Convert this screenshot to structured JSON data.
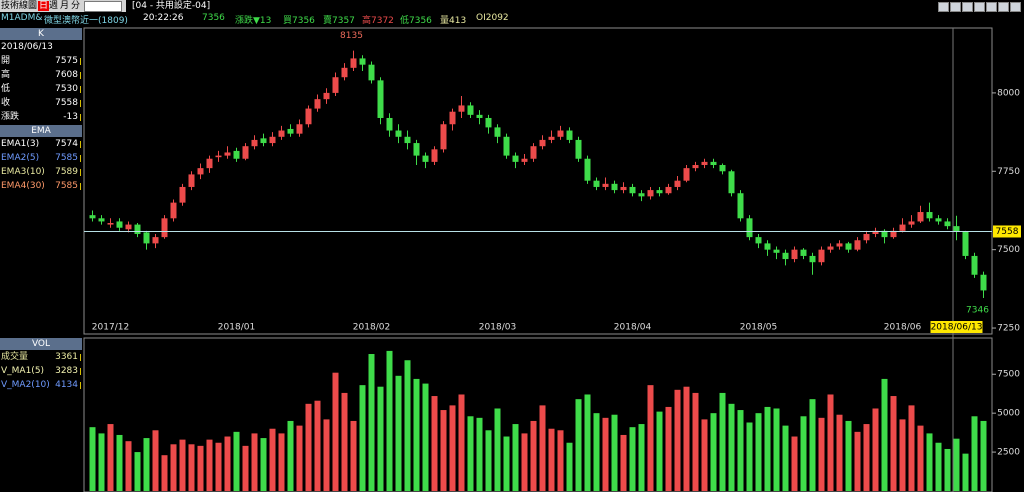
{
  "toolbar": {
    "title": "技術線圖",
    "tabs": [
      "日",
      "週",
      "月",
      "分"
    ],
    "setting": "[04 - 共用設定-04]"
  },
  "quote": {
    "symbol": "M1ADM&",
    "name": "微型澳幣近一(1809)",
    "time": "20:22:26",
    "last": 7356,
    "change": "漲跌▼13",
    "bid": "買7356",
    "ask": "賣7357",
    "high": "高7372",
    "low": "低7356",
    "volume": "量413",
    "oi": "OI2092"
  },
  "sidebar": {
    "k_header": "K",
    "k_rows": [
      {
        "label": "開"
      },
      {
        "label": "高"
      },
      {
        "label": "低"
      },
      {
        "label": "收"
      }
    ],
    "change": {
      "label": "漲跌",
      "value": -13
    },
    "ema_header": "EMA",
    "ema_rows": [
      {
        "label": "EMA1(3)",
        "value": 7574,
        "color": "#ffffff"
      },
      {
        "label": "EMA2(5)",
        "value": 7585,
        "color": "#6f9bff"
      },
      {
        "label": "EMA3(10)",
        "value": 7589,
        "color": "#e8e8a0"
      },
      {
        "label": "EMA4(30)",
        "value": 7585,
        "color": "#ff9a6a"
      }
    ],
    "vol_header": "VOL",
    "vol_label": "成交量",
    "vma_rows": [
      {
        "label": "V_MA1(5)",
        "value": 3283,
        "color": "#f2f2b0"
      },
      {
        "label": "V_MA2(10)",
        "value": 4134,
        "color": "#6f9bff"
      }
    ]
  },
  "chart_data": [
    {
      "type": "candlestick",
      "up_color": "#ec4b4b",
      "down_color": "#3fdc4a",
      "categories": [
        null,
        null,
        "2017/12",
        null,
        null,
        null,
        null,
        null,
        null,
        null,
        null,
        null,
        null,
        null,
        null,
        null,
        "2018/01",
        null,
        null,
        null,
        null,
        null,
        null,
        null,
        null,
        null,
        null,
        null,
        null,
        null,
        null,
        "2018/02",
        null,
        null,
        null,
        null,
        null,
        null,
        null,
        null,
        null,
        null,
        null,
        null,
        null,
        "2018/03",
        null,
        null,
        null,
        null,
        null,
        null,
        null,
        null,
        null,
        null,
        null,
        null,
        null,
        null,
        "2018/04",
        null,
        null,
        null,
        null,
        null,
        null,
        null,
        null,
        null,
        null,
        null,
        null,
        null,
        "2018/05",
        null,
        null,
        null,
        null,
        null,
        null,
        null,
        null,
        null,
        null,
        null,
        null,
        null,
        null,
        null,
        "2018/06",
        null,
        null,
        null,
        null,
        null,
        "2018/06/13",
        null,
        null,
        null
      ],
      "ohlc": [
        [
          7610,
          7625,
          7590,
          7600
        ],
        [
          7600,
          7610,
          7580,
          7590
        ],
        [
          7580,
          7600,
          7570,
          7585
        ],
        [
          7590,
          7600,
          7560,
          7570
        ],
        [
          7565,
          7590,
          7555,
          7580
        ],
        [
          7580,
          7585,
          7540,
          7550
        ],
        [
          7555,
          7560,
          7500,
          7520
        ],
        [
          7520,
          7550,
          7505,
          7540
        ],
        [
          7540,
          7610,
          7535,
          7600
        ],
        [
          7600,
          7660,
          7590,
          7650
        ],
        [
          7650,
          7710,
          7640,
          7700
        ],
        [
          7700,
          7750,
          7690,
          7740
        ],
        [
          7740,
          7775,
          7725,
          7760
        ],
        [
          7760,
          7800,
          7745,
          7790
        ],
        [
          7795,
          7815,
          7780,
          7800
        ],
        [
          7800,
          7830,
          7790,
          7810
        ],
        [
          7815,
          7825,
          7780,
          7790
        ],
        [
          7790,
          7840,
          7785,
          7830
        ],
        [
          7830,
          7865,
          7820,
          7850
        ],
        [
          7855,
          7870,
          7830,
          7840
        ],
        [
          7840,
          7875,
          7830,
          7860
        ],
        [
          7860,
          7895,
          7850,
          7880
        ],
        [
          7885,
          7900,
          7860,
          7870
        ],
        [
          7870,
          7915,
          7860,
          7900
        ],
        [
          7900,
          7960,
          7890,
          7950
        ],
        [
          7950,
          7995,
          7940,
          7980
        ],
        [
          7980,
          8015,
          7965,
          8000
        ],
        [
          8000,
          8065,
          7990,
          8050
        ],
        [
          8050,
          8095,
          8040,
          8080
        ],
        [
          8080,
          8135,
          8070,
          8110
        ],
        [
          8110,
          8120,
          8070,
          8090
        ],
        [
          8090,
          8100,
          8030,
          8040
        ],
        [
          8040,
          8050,
          7900,
          7920
        ],
        [
          7920,
          7935,
          7860,
          7880
        ],
        [
          7880,
          7900,
          7840,
          7860
        ],
        [
          7860,
          7880,
          7820,
          7840
        ],
        [
          7840,
          7850,
          7770,
          7800
        ],
        [
          7800,
          7810,
          7760,
          7780
        ],
        [
          7780,
          7830,
          7770,
          7820
        ],
        [
          7820,
          7910,
          7810,
          7900
        ],
        [
          7900,
          7950,
          7880,
          7940
        ],
        [
          7940,
          7990,
          7920,
          7960
        ],
        [
          7960,
          7970,
          7920,
          7930
        ],
        [
          7930,
          7945,
          7900,
          7920
        ],
        [
          7920,
          7930,
          7870,
          7890
        ],
        [
          7890,
          7900,
          7840,
          7860
        ],
        [
          7860,
          7870,
          7790,
          7800
        ],
        [
          7800,
          7810,
          7760,
          7780
        ],
        [
          7780,
          7805,
          7770,
          7790
        ],
        [
          7790,
          7840,
          7780,
          7830
        ],
        [
          7830,
          7865,
          7820,
          7850
        ],
        [
          7850,
          7880,
          7840,
          7860
        ],
        [
          7860,
          7895,
          7850,
          7880
        ],
        [
          7880,
          7890,
          7840,
          7850
        ],
        [
          7850,
          7860,
          7780,
          7790
        ],
        [
          7790,
          7800,
          7710,
          7720
        ],
        [
          7720,
          7730,
          7690,
          7700
        ],
        [
          7700,
          7730,
          7690,
          7710
        ],
        [
          7710,
          7720,
          7680,
          7690
        ],
        [
          7690,
          7715,
          7680,
          7700
        ],
        [
          7700,
          7710,
          7670,
          7680
        ],
        [
          7680,
          7690,
          7655,
          7670
        ],
        [
          7670,
          7700,
          7660,
          7690
        ],
        [
          7690,
          7700,
          7670,
          7680
        ],
        [
          7680,
          7710,
          7675,
          7700
        ],
        [
          7700,
          7735,
          7690,
          7720
        ],
        [
          7720,
          7770,
          7715,
          7760
        ],
        [
          7760,
          7780,
          7750,
          7770
        ],
        [
          7770,
          7790,
          7760,
          7780
        ],
        [
          7780,
          7790,
          7760,
          7770
        ],
        [
          7770,
          7775,
          7740,
          7750
        ],
        [
          7750,
          7755,
          7670,
          7680
        ],
        [
          7680,
          7690,
          7590,
          7600
        ],
        [
          7600,
          7610,
          7530,
          7540
        ],
        [
          7540,
          7550,
          7505,
          7520
        ],
        [
          7520,
          7530,
          7480,
          7500
        ],
        [
          7500,
          7510,
          7470,
          7490
        ],
        [
          7490,
          7500,
          7450,
          7470
        ],
        [
          7470,
          7510,
          7460,
          7500
        ],
        [
          7500,
          7505,
          7470,
          7480
        ],
        [
          7480,
          7490,
          7420,
          7460
        ],
        [
          7460,
          7510,
          7450,
          7500
        ],
        [
          7500,
          7520,
          7490,
          7510
        ],
        [
          7510,
          7530,
          7500,
          7520
        ],
        [
          7520,
          7525,
          7490,
          7500
        ],
        [
          7500,
          7540,
          7495,
          7530
        ],
        [
          7530,
          7560,
          7520,
          7550
        ],
        [
          7550,
          7570,
          7540,
          7560
        ],
        [
          7560,
          7565,
          7520,
          7540
        ],
        [
          7540,
          7570,
          7535,
          7560
        ],
        [
          7560,
          7600,
          7555,
          7580
        ],
        [
          7580,
          7610,
          7570,
          7590
        ],
        [
          7590,
          7640,
          7585,
          7620
        ],
        [
          7620,
          7650,
          7590,
          7600
        ],
        [
          7600,
          7610,
          7580,
          7590
        ],
        [
          7590,
          7600,
          7565,
          7575
        ],
        [
          7575,
          7608,
          7530,
          7558
        ],
        [
          7558,
          7560,
          7470,
          7480
        ],
        [
          7480,
          7490,
          7410,
          7420
        ],
        [
          7420,
          7430,
          7346,
          7370
        ]
      ],
      "ylim": [
        7231,
        8207
      ],
      "yticks": [
        7250,
        7500,
        7750,
        8000
      ]
    },
    {
      "type": "bar",
      "values": [
        4100,
        3700,
        4300,
        3600,
        3200,
        2500,
        3400,
        3900,
        2300,
        3000,
        3300,
        3000,
        2900,
        3300,
        3100,
        3500,
        3800,
        2900,
        3700,
        3400,
        4000,
        3700,
        4500,
        4200,
        5600,
        5800,
        4600,
        7600,
        6300,
        4500,
        6800,
        8800,
        6700,
        9000,
        7400,
        8400,
        7200,
        6900,
        6100,
        5200,
        5500,
        6200,
        4800,
        4700,
        3900,
        5300,
        3500,
        4300,
        3700,
        4500,
        5500,
        4000,
        3900,
        3100,
        5900,
        6200,
        5000,
        4700,
        4900,
        3600,
        4100,
        4300,
        6800,
        5100,
        5400,
        6500,
        6700,
        6300,
        4600,
        5000,
        6300,
        5600,
        5200,
        4400,
        5000,
        5400,
        5300,
        4200,
        3500,
        4800,
        5900,
        4700,
        6200,
        4900,
        4500,
        3800,
        4300,
        5300,
        7200,
        6100,
        4600,
        5500,
        4200,
        3700,
        3100,
        2700,
        3361,
        2400,
        4800,
        4500
      ],
      "ylim": [
        0,
        9700
      ],
      "yticks": [
        2500,
        5000,
        7500
      ]
    }
  ]
}
